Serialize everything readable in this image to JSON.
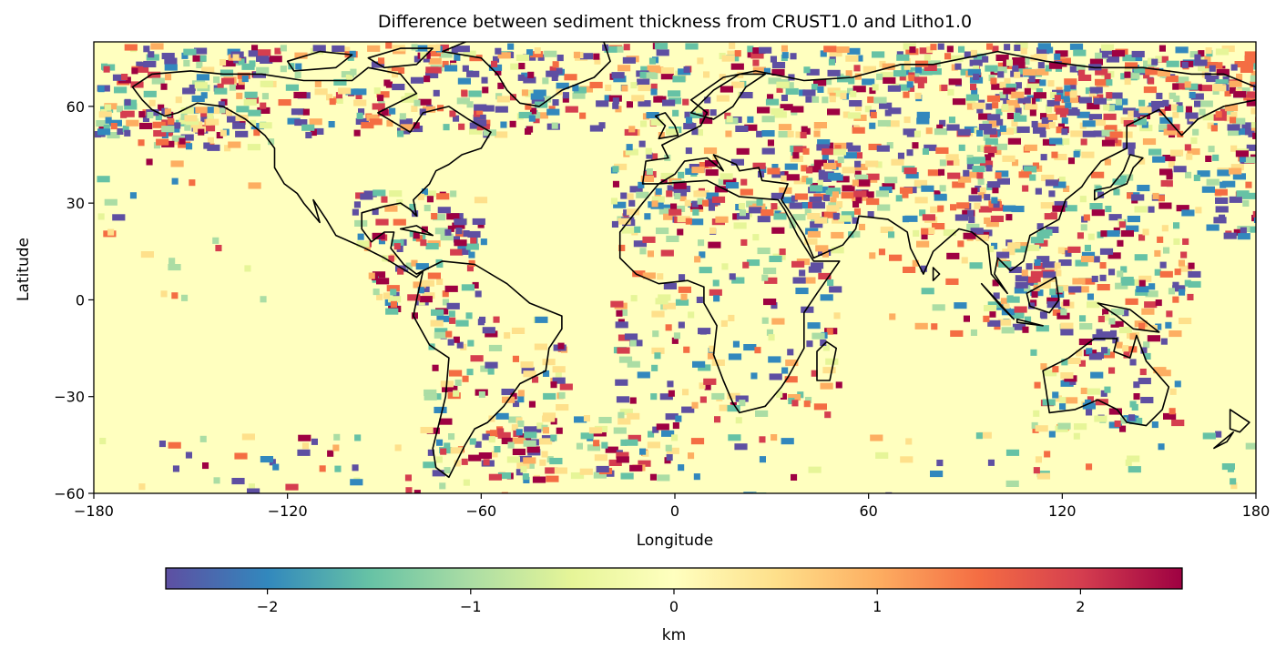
{
  "title": "Difference between sediment thickness from CRUST1.0 and Litho1.0",
  "x_axis": {
    "label": "Longitude",
    "range": [
      -180,
      180
    ],
    "ticks": [
      "−180",
      "−120",
      "−60",
      "0",
      "60",
      "120",
      "180"
    ],
    "tick_values": [
      -180,
      -120,
      -60,
      0,
      60,
      120,
      180
    ]
  },
  "y_axis": {
    "label": "Latitude",
    "range": [
      -60,
      80
    ],
    "ticks": [
      "−60",
      "−30",
      "0",
      "30",
      "60"
    ],
    "tick_values": [
      -60,
      -30,
      0,
      30,
      60
    ]
  },
  "colorbar": {
    "label": "km",
    "range": [
      -2.5,
      2.5
    ],
    "colormap": "Spectral_r",
    "orientation": "horizontal",
    "ticks": [
      "−2",
      "−1",
      "0",
      "1",
      "2"
    ],
    "tick_values": [
      -2,
      -1,
      0,
      1,
      2
    ],
    "colors": [
      "#5e4fa2",
      "#3288bd",
      "#66c2a5",
      "#abdda4",
      "#e6f598",
      "#ffffbf",
      "#fee08b",
      "#fdae61",
      "#f46d43",
      "#d53e4f",
      "#9e0142"
    ]
  },
  "map": {
    "projection": "PlateCarree",
    "coastlines": "black",
    "background": "#ffffbf"
  }
}
